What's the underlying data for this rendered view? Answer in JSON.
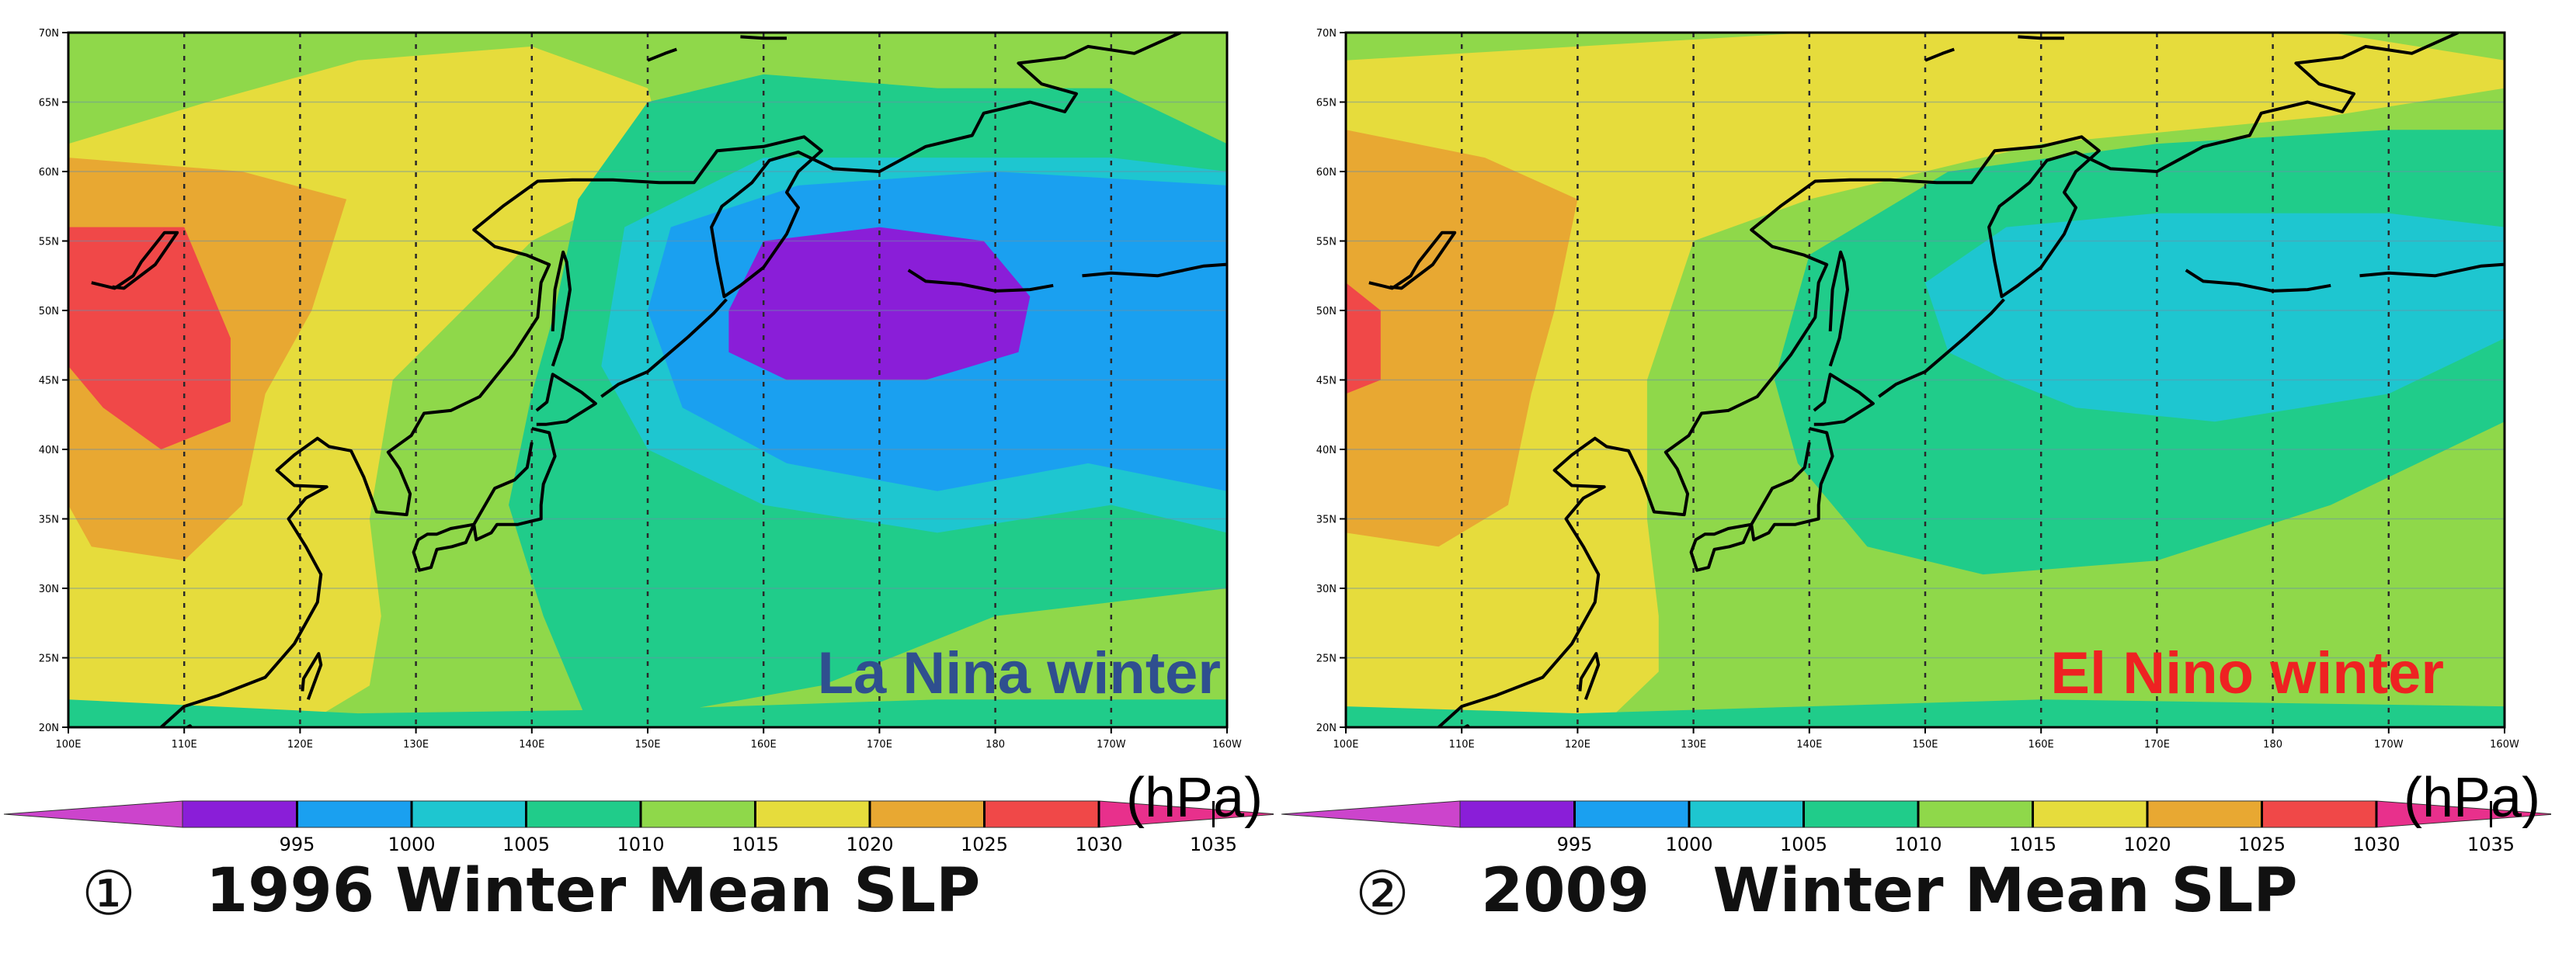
{
  "colors": {
    "background": "#8fd84a",
    "grid": "#2a2a2a",
    "coast": "#000000",
    "levels": [
      "#cc44cc",
      "#8a1ed8",
      "#1aa0f0",
      "#1ec6d0",
      "#20cc8a",
      "#8fd84a",
      "#e6dc3c",
      "#e8a832",
      "#f04848",
      "#e8308c"
    ],
    "la_nina": "#2f4f8f",
    "el_nino": "#ee2222"
  },
  "chart_data": [
    {
      "type": "heatmap",
      "title": "1996 Winter Mean SLP",
      "index_symbol": "①",
      "annotation": "La Nina winter",
      "annotation_color": "#2f4f8f",
      "unit": "(hPa)",
      "x_ticks": [
        "100E",
        "110E",
        "120E",
        "130E",
        "140E",
        "150E",
        "160E",
        "170E",
        "180",
        "170W",
        "160W"
      ],
      "y_ticks": [
        "70N",
        "65N",
        "60N",
        "55N",
        "50N",
        "45N",
        "40N",
        "35N",
        "30N",
        "25N",
        "20N"
      ],
      "lon_range": [
        100,
        200
      ],
      "lat_range": [
        20,
        70
      ],
      "colorbar_levels": [
        995,
        1000,
        1005,
        1010,
        1015,
        1020,
        1025,
        1030,
        1035
      ],
      "contour_regions": [
        {
          "level_index": 6,
          "points": [
            [
              100,
              62
            ],
            [
              112,
              65
            ],
            [
              125,
              68
            ],
            [
              140,
              69
            ],
            [
              150,
              66
            ],
            [
              152,
              60
            ],
            [
              140,
              55
            ],
            [
              128,
              45
            ],
            [
              126,
              35
            ],
            [
              127,
              28
            ],
            [
              126,
              23
            ],
            [
              120,
              20
            ],
            [
              100,
              20
            ]
          ]
        },
        {
          "level_index": 7,
          "points": [
            [
              100,
              61
            ],
            [
              115,
              60
            ],
            [
              124,
              58
            ],
            [
              121,
              50
            ],
            [
              117,
              44
            ],
            [
              115,
              36
            ],
            [
              110,
              32
            ],
            [
              102,
              33
            ],
            [
              100,
              36
            ]
          ]
        },
        {
          "level_index": 8,
          "points": [
            [
              100,
              56
            ],
            [
              110,
              56
            ],
            [
              114,
              48
            ],
            [
              114,
              42
            ],
            [
              108,
              40
            ],
            [
              103,
              43
            ],
            [
              100,
              46
            ]
          ]
        },
        {
          "level_index": 4,
          "points": [
            [
              145,
              20
            ],
            [
              165,
              23
            ],
            [
              180,
              28
            ],
            [
              200,
              30
            ],
            [
              200,
              62
            ],
            [
              190,
              66
            ],
            [
              175,
              66
            ],
            [
              160,
              67
            ],
            [
              150,
              65
            ],
            [
              144,
              58
            ],
            [
              142,
              50
            ],
            [
              140,
              44
            ],
            [
              138,
              36
            ],
            [
              141,
              28
            ]
          ]
        },
        {
          "level_index": 3,
          "points": [
            [
              146,
              46
            ],
            [
              148,
              56
            ],
            [
              160,
              61
            ],
            [
              175,
              61
            ],
            [
              190,
              61
            ],
            [
              200,
              60
            ],
            [
              200,
              34
            ],
            [
              190,
              36
            ],
            [
              175,
              34
            ],
            [
              160,
              36
            ],
            [
              150,
              40
            ]
          ]
        },
        {
          "level_index": 2,
          "points": [
            [
              150,
              50
            ],
            [
              152,
              56
            ],
            [
              163,
              59
            ],
            [
              180,
              60
            ],
            [
              200,
              59
            ],
            [
              200,
              37
            ],
            [
              188,
              39
            ],
            [
              175,
              37
            ],
            [
              162,
              39
            ],
            [
              153,
              43
            ]
          ]
        },
        {
          "level_index": 1,
          "points": [
            [
              157,
              50
            ],
            [
              160,
              55
            ],
            [
              170,
              56
            ],
            [
              179,
              55
            ],
            [
              183,
              51
            ],
            [
              182,
              47
            ],
            [
              174,
              45
            ],
            [
              162,
              45
            ],
            [
              157,
              47
            ]
          ]
        },
        {
          "level_index": 4,
          "points": [
            [
              100,
              20
            ],
            [
              200,
              20
            ],
            [
              200,
              22
            ],
            [
              175,
              22
            ],
            [
              150,
              21.3
            ],
            [
              125,
              21
            ],
            [
              100,
              22
            ]
          ]
        }
      ]
    },
    {
      "type": "heatmap",
      "title": "2009   Winter Mean SLP",
      "index_symbol": "②",
      "annotation": "El Nino winter",
      "annotation_color": "#ee2222",
      "unit": "(hPa)",
      "x_ticks": [
        "100E",
        "110E",
        "120E",
        "130E",
        "140E",
        "150E",
        "160E",
        "170E",
        "180",
        "170W",
        "160W"
      ],
      "y_ticks": [
        "70N",
        "65N",
        "60N",
        "55N",
        "50N",
        "45N",
        "40N",
        "35N",
        "30N",
        "25N",
        "20N"
      ],
      "lon_range": [
        100,
        200
      ],
      "lat_range": [
        20,
        70
      ],
      "colorbar_levels": [
        995,
        1000,
        1005,
        1010,
        1015,
        1020,
        1025,
        1030,
        1035
      ],
      "contour_regions": [
        {
          "level_index": 6,
          "points": [
            [
              100,
              68
            ],
            [
              140,
              70
            ],
            [
              185,
              70
            ],
            [
              200,
              68
            ],
            [
              200,
              66
            ],
            [
              185,
              64
            ],
            [
              160,
              62
            ],
            [
              140,
              58
            ],
            [
              130,
              55
            ],
            [
              126,
              45
            ],
            [
              126,
              35
            ],
            [
              127,
              28
            ],
            [
              127,
              24
            ],
            [
              122,
              20
            ],
            [
              100,
              20
            ]
          ]
        },
        {
          "level_index": 7,
          "points": [
            [
              100,
              63
            ],
            [
              112,
              61
            ],
            [
              120,
              58
            ],
            [
              118,
              50
            ],
            [
              116,
              44
            ],
            [
              114,
              36
            ],
            [
              108,
              33
            ],
            [
              100,
              34
            ]
          ]
        },
        {
          "level_index": 8,
          "points": [
            [
              100,
              52
            ],
            [
              103,
              50
            ],
            [
              103,
              45
            ],
            [
              100,
              44
            ]
          ]
        },
        {
          "level_index": 4,
          "points": [
            [
              137,
              45
            ],
            [
              140,
              54
            ],
            [
              152,
              60
            ],
            [
              170,
              62
            ],
            [
              190,
              63
            ],
            [
              200,
              63
            ],
            [
              200,
              42
            ],
            [
              185,
              36
            ],
            [
              170,
              32
            ],
            [
              155,
              31
            ],
            [
              145,
              33
            ],
            [
              139,
              39
            ]
          ]
        },
        {
          "level_index": 3,
          "points": [
            [
              150,
              52
            ],
            [
              157,
              56
            ],
            [
              170,
              57
            ],
            [
              190,
              57
            ],
            [
              200,
              56
            ],
            [
              200,
              48
            ],
            [
              190,
              44
            ],
            [
              175,
              42
            ],
            [
              163,
              43
            ],
            [
              157,
              45
            ],
            [
              152,
              47
            ]
          ]
        },
        {
          "level_index": 4,
          "points": [
            [
              100,
              20
            ],
            [
              200,
              20
            ],
            [
              200,
              21.5
            ],
            [
              160,
              22
            ],
            [
              140,
              21.5
            ],
            [
              120,
              21
            ],
            [
              100,
              21.5
            ]
          ]
        }
      ]
    }
  ]
}
